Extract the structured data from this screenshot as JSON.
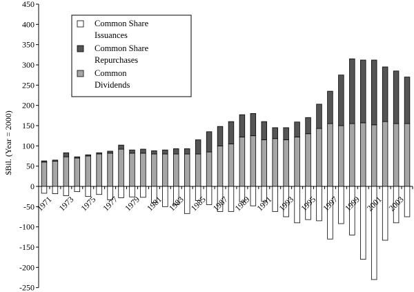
{
  "chart_data": {
    "type": "bar",
    "stacked": true,
    "ylabel": "$Bil. (Year = 2000)",
    "ylim": [
      -250,
      450
    ],
    "yticks": [
      -250,
      -200,
      -150,
      -100,
      -50,
      0,
      50,
      100,
      150,
      200,
      250,
      300,
      350,
      400,
      450
    ],
    "ytick_labels": [
      "-250",
      "-200",
      "-150",
      "-100",
      "-50",
      "0",
      "50",
      "100",
      "150",
      "200",
      "250",
      "300",
      "350",
      "400",
      "450"
    ],
    "x": [
      1971,
      1972,
      1973,
      1974,
      1975,
      1976,
      1977,
      1978,
      1979,
      1980,
      1981,
      1982,
      1983,
      1984,
      1985,
      1986,
      1987,
      1988,
      1989,
      1990,
      1991,
      1992,
      1993,
      1994,
      1995,
      1996,
      1997,
      1998,
      1999,
      2000,
      2001,
      2002,
      2003,
      2004
    ],
    "xtick_labels": [
      "1971",
      "1973",
      "1975",
      "1977",
      "1979",
      "1981",
      "1983",
      "1985",
      "1987",
      "1989",
      "1991",
      "1993",
      "1995",
      "1997",
      "1999",
      "2001",
      "2003"
    ],
    "legend": {
      "placement": "top-left",
      "labels": [
        "Common Share\nIssuances",
        "Common Share\nRepurchases",
        "Common\nDividends"
      ]
    },
    "grid": false,
    "series": [
      {
        "name": "Common Share Issuances",
        "color": "#ffffff",
        "values": [
          -17,
          -18,
          -23,
          -13,
          -25,
          -20,
          -33,
          -28,
          -26,
          -27,
          -40,
          -50,
          -45,
          -67,
          -35,
          -45,
          -62,
          -62,
          -38,
          -48,
          -37,
          -62,
          -75,
          -90,
          -82,
          -85,
          -130,
          -92,
          -120,
          -180,
          -230,
          -133,
          -90,
          -75
        ]
      },
      {
        "name": "Common Share Repurchases",
        "color": "#555555",
        "values": [
          3,
          3,
          10,
          3,
          3,
          3,
          5,
          10,
          8,
          10,
          8,
          10,
          13,
          13,
          35,
          50,
          48,
          55,
          55,
          55,
          45,
          27,
          30,
          37,
          40,
          60,
          80,
          125,
          160,
          155,
          160,
          135,
          130,
          115
        ]
      },
      {
        "name": "Common Dividends",
        "color": "#a6a6a6",
        "values": [
          60,
          62,
          73,
          70,
          75,
          80,
          82,
          92,
          82,
          82,
          80,
          80,
          80,
          80,
          80,
          85,
          100,
          105,
          122,
          125,
          115,
          118,
          115,
          122,
          130,
          143,
          155,
          150,
          155,
          157,
          152,
          160,
          155,
          155
        ]
      }
    ]
  }
}
